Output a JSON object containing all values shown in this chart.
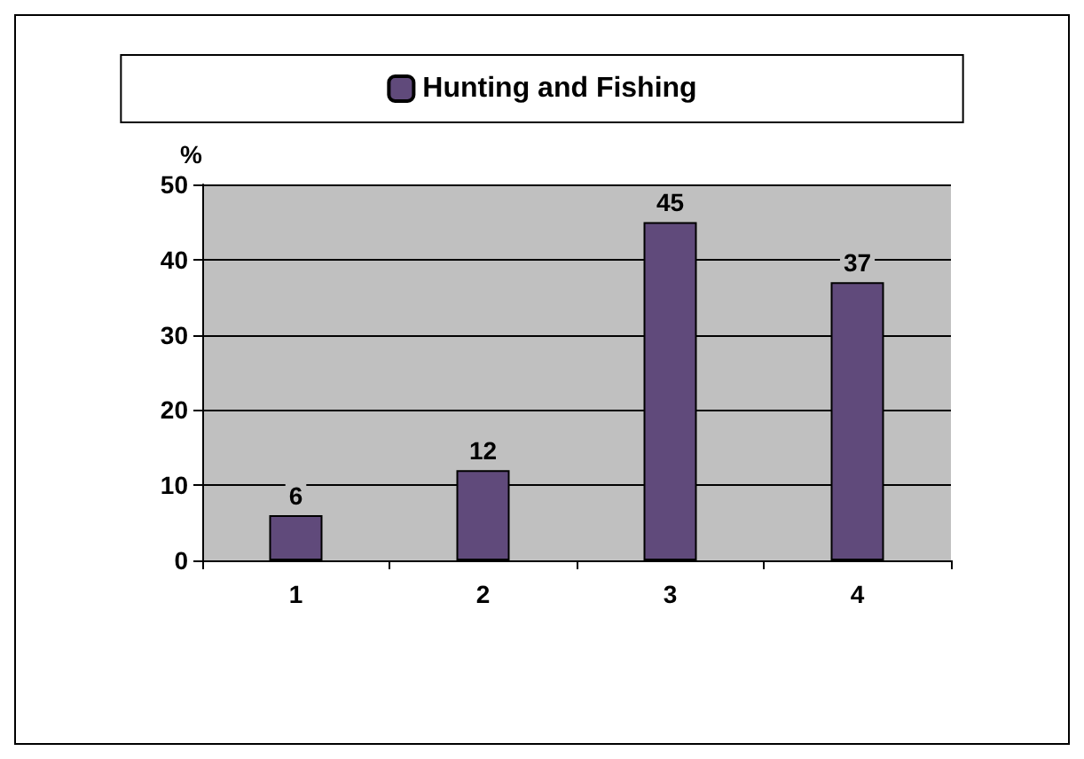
{
  "chart_data": {
    "type": "bar",
    "ylabel": "%",
    "categories": [
      "1",
      "2",
      "3",
      "4"
    ],
    "series": [
      {
        "name": "Hunting and Fishing",
        "color": "#604a7b",
        "values": [
          6,
          12,
          45,
          37
        ]
      }
    ],
    "ylim": [
      0,
      50
    ],
    "yticks": [
      0,
      10,
      20,
      30,
      40,
      50
    ],
    "grid": "y",
    "legend": "top",
    "data_labels": true
  }
}
